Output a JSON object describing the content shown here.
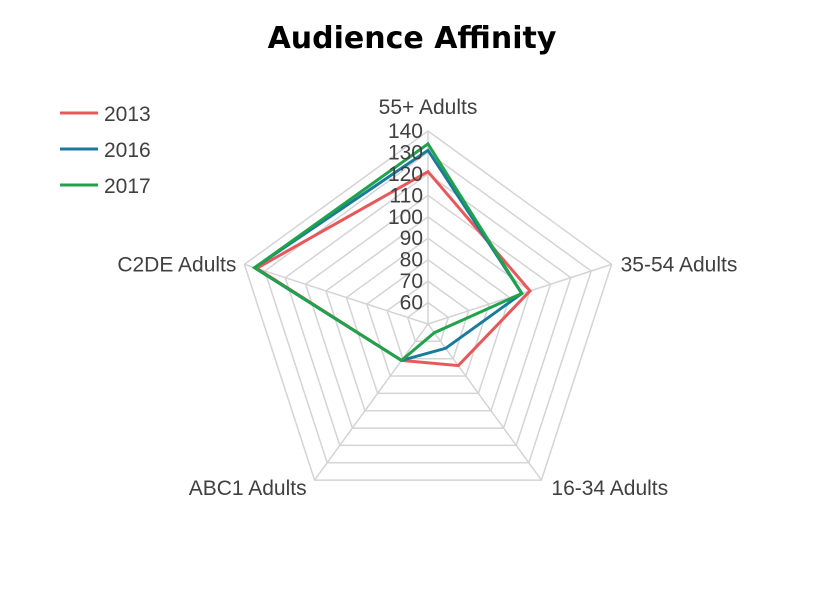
{
  "chart_data": {
    "type": "radar",
    "title": "Audience Affinity",
    "categories": [
      "55+ Adults",
      "35-54 Adults",
      "16-34 Adults",
      "ABC1 Adults",
      "C2DE Adults"
    ],
    "r_ticks": [
      60,
      70,
      80,
      90,
      100,
      110,
      120,
      130,
      140
    ],
    "rlim": [
      50,
      140
    ],
    "grid": true,
    "legend_position": "top-left",
    "series": [
      {
        "name": "2013",
        "color": "#e8585a",
        "values": [
          121,
          100,
          74,
          71,
          134
        ]
      },
      {
        "name": "2016",
        "color": "#1a7a9c",
        "values": [
          131,
          96,
          64,
          71,
          135
        ]
      },
      {
        "name": "2017",
        "color": "#1fa24a",
        "values": [
          134,
          96,
          55,
          71,
          135
        ]
      }
    ]
  }
}
